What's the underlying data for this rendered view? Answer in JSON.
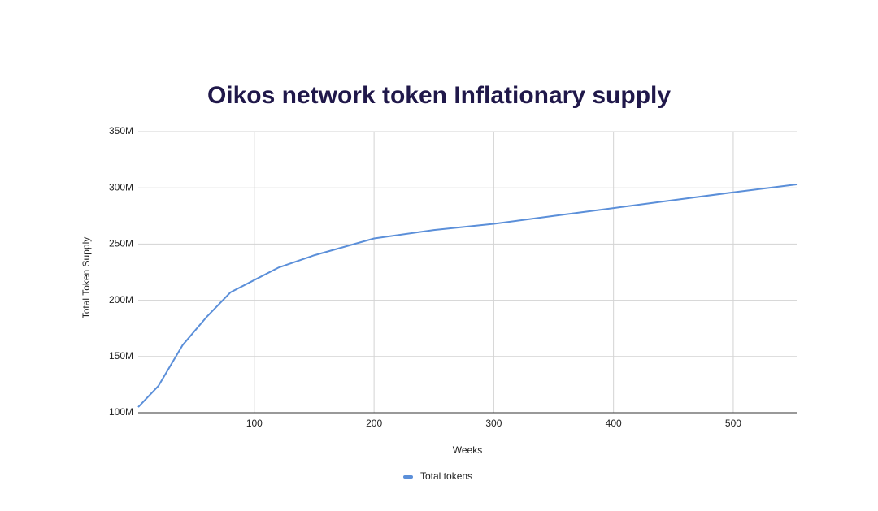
{
  "chart_data": {
    "type": "line",
    "title": "Oikos network token Inflationary supply",
    "x_label": "Weeks",
    "y_label": "Total Token Supply",
    "x": [
      3,
      20,
      40,
      60,
      80,
      100,
      120,
      150,
      200,
      250,
      300,
      350,
      400,
      450,
      500,
      553
    ],
    "series": [
      {
        "name": "Total tokens",
        "color": "#5b8fd9",
        "values": [
          105000000,
          124000000,
          160000000,
          185000000,
          207000000,
          218000000,
          229000000,
          240000000,
          255000000,
          262500000,
          268000000,
          275000000,
          282000000,
          289000000,
          296000000,
          303000000
        ]
      }
    ],
    "xlim": [
      3,
      553
    ],
    "xticks": [
      100,
      200,
      300,
      400,
      500
    ],
    "ylim": [
      100000000,
      350000000
    ],
    "yticks": [
      {
        "value": 100000000,
        "label": "100M"
      },
      {
        "value": 150000000,
        "label": "150M"
      },
      {
        "value": 200000000,
        "label": "200M"
      },
      {
        "value": 250000000,
        "label": "250M"
      },
      {
        "value": 300000000,
        "label": "300M"
      },
      {
        "value": 350000000,
        "label": "350M"
      }
    ],
    "grid": true,
    "legend": "bottom"
  }
}
